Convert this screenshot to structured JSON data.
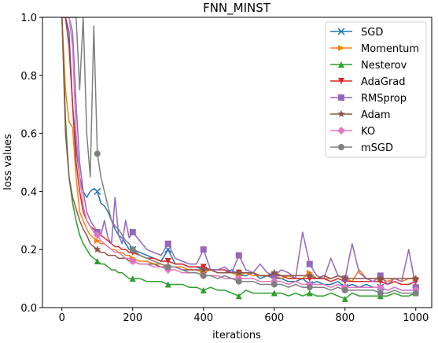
{
  "chart_data": {
    "type": "line",
    "title": "FNN_MINST",
    "xlabel": "iterations",
    "ylabel": "loss values",
    "xlim": [
      -55,
      1045
    ],
    "ylim": [
      0.0,
      1.0
    ],
    "xticks": [
      0,
      200,
      400,
      600,
      800,
      1000
    ],
    "xtick_labels": [
      "0",
      "200",
      "400",
      "600",
      "800",
      "1000"
    ],
    "yticks": [
      0.0,
      0.2,
      0.4,
      0.6,
      0.8,
      1.0
    ],
    "ytick_labels": [
      "0.0",
      "0.2",
      "0.4",
      "0.6",
      "0.8",
      "1.0"
    ],
    "grid": false,
    "legend_position": "top-right",
    "x": [
      0,
      10,
      20,
      30,
      40,
      50,
      60,
      70,
      80,
      90,
      100,
      110,
      120,
      130,
      140,
      150,
      160,
      170,
      180,
      190,
      200,
      220,
      240,
      260,
      280,
      300,
      320,
      340,
      360,
      380,
      400,
      420,
      440,
      460,
      480,
      500,
      520,
      540,
      560,
      580,
      600,
      620,
      640,
      660,
      680,
      700,
      720,
      740,
      760,
      780,
      800,
      820,
      840,
      860,
      880,
      900,
      920,
      940,
      960,
      980,
      1000
    ],
    "series": [
      {
        "name": "SGD",
        "color": "#1f77b4",
        "marker": "x",
        "values": [
          1.0,
          1.0,
          0.95,
          0.7,
          0.55,
          0.45,
          0.4,
          0.38,
          0.4,
          0.41,
          0.4,
          0.36,
          0.35,
          0.33,
          0.3,
          0.27,
          0.25,
          0.24,
          0.22,
          0.2,
          0.2,
          0.19,
          0.18,
          0.17,
          0.16,
          0.2,
          0.15,
          0.15,
          0.14,
          0.14,
          0.13,
          0.13,
          0.12,
          0.12,
          0.13,
          0.11,
          0.11,
          0.12,
          0.1,
          0.11,
          0.1,
          0.1,
          0.09,
          0.09,
          0.1,
          0.08,
          0.09,
          0.08,
          0.08,
          0.09,
          0.07,
          0.08,
          0.07,
          0.08,
          0.07,
          0.07,
          0.06,
          0.07,
          0.06,
          0.06,
          0.06
        ]
      },
      {
        "name": "Momentum",
        "color": "#ff7f0e",
        "marker": "triangle-right",
        "values": [
          1.0,
          0.75,
          0.64,
          0.62,
          0.45,
          0.33,
          0.3,
          0.27,
          0.25,
          0.24,
          0.23,
          0.22,
          0.22,
          0.21,
          0.2,
          0.2,
          0.19,
          0.19,
          0.18,
          0.18,
          0.17,
          0.16,
          0.16,
          0.15,
          0.15,
          0.14,
          0.14,
          0.14,
          0.13,
          0.13,
          0.12,
          0.13,
          0.12,
          0.12,
          0.12,
          0.11,
          0.12,
          0.11,
          0.11,
          0.11,
          0.11,
          0.1,
          0.11,
          0.1,
          0.1,
          0.12,
          0.1,
          0.1,
          0.1,
          0.11,
          0.1,
          0.09,
          0.13,
          0.1,
          0.1,
          0.1,
          0.09,
          0.1,
          0.09,
          0.1,
          0.1
        ]
      },
      {
        "name": "Nesterov",
        "color": "#2ca02c",
        "marker": "triangle-up",
        "values": [
          1.0,
          0.65,
          0.45,
          0.36,
          0.3,
          0.25,
          0.22,
          0.2,
          0.18,
          0.17,
          0.16,
          0.15,
          0.15,
          0.14,
          0.13,
          0.13,
          0.12,
          0.12,
          0.11,
          0.1,
          0.1,
          0.1,
          0.09,
          0.09,
          0.09,
          0.08,
          0.08,
          0.08,
          0.07,
          0.07,
          0.06,
          0.07,
          0.06,
          0.06,
          0.05,
          0.04,
          0.06,
          0.05,
          0.05,
          0.05,
          0.05,
          0.05,
          0.04,
          0.05,
          0.04,
          0.05,
          0.04,
          0.04,
          0.05,
          0.04,
          0.03,
          0.05,
          0.04,
          0.04,
          0.04,
          0.04,
          0.04,
          0.05,
          0.04,
          0.04,
          0.05
        ]
      },
      {
        "name": "AdaGrad",
        "color": "#d62728",
        "marker": "triangle-down",
        "values": [
          1.0,
          1.0,
          0.9,
          0.7,
          0.5,
          0.4,
          0.33,
          0.3,
          0.28,
          0.27,
          0.26,
          0.25,
          0.24,
          0.23,
          0.22,
          0.21,
          0.21,
          0.2,
          0.2,
          0.19,
          0.19,
          0.18,
          0.17,
          0.17,
          0.16,
          0.16,
          0.15,
          0.15,
          0.14,
          0.14,
          0.14,
          0.13,
          0.13,
          0.13,
          0.12,
          0.12,
          0.12,
          0.12,
          0.11,
          0.11,
          0.11,
          0.11,
          0.1,
          0.1,
          0.1,
          0.1,
          0.1,
          0.1,
          0.09,
          0.1,
          0.09,
          0.09,
          0.09,
          0.09,
          0.09,
          0.09,
          0.08,
          0.09,
          0.08,
          0.08,
          0.09
        ]
      },
      {
        "name": "RMSprop",
        "color": "#9467bd",
        "marker": "square",
        "values": [
          1.0,
          1.0,
          1.0,
          0.95,
          0.7,
          0.5,
          0.4,
          0.33,
          0.3,
          0.28,
          0.26,
          0.25,
          0.3,
          0.24,
          0.22,
          0.38,
          0.25,
          0.22,
          0.3,
          0.24,
          0.26,
          0.23,
          0.2,
          0.19,
          0.18,
          0.22,
          0.17,
          0.16,
          0.15,
          0.15,
          0.2,
          0.13,
          0.13,
          0.14,
          0.12,
          0.18,
          0.13,
          0.12,
          0.15,
          0.12,
          0.11,
          0.13,
          0.12,
          0.1,
          0.26,
          0.15,
          0.11,
          0.1,
          0.17,
          0.11,
          0.1,
          0.22,
          0.12,
          0.1,
          0.09,
          0.11,
          0.08,
          0.1,
          0.09,
          0.2,
          0.07
        ]
      },
      {
        "name": "Adam",
        "color": "#8c564b",
        "marker": "star",
        "values": [
          1.0,
          0.6,
          0.45,
          0.38,
          0.34,
          0.3,
          0.27,
          0.25,
          0.22,
          0.21,
          0.2,
          0.19,
          0.19,
          0.18,
          0.18,
          0.18,
          0.17,
          0.17,
          0.17,
          0.16,
          0.16,
          0.15,
          0.15,
          0.15,
          0.14,
          0.14,
          0.14,
          0.13,
          0.13,
          0.13,
          0.13,
          0.13,
          0.12,
          0.12,
          0.12,
          0.12,
          0.12,
          0.12,
          0.11,
          0.11,
          0.12,
          0.11,
          0.11,
          0.11,
          0.11,
          0.11,
          0.1,
          0.11,
          0.1,
          0.11,
          0.1,
          0.1,
          0.1,
          0.1,
          0.1,
          0.1,
          0.1,
          0.1,
          0.1,
          0.1,
          0.1
        ]
      },
      {
        "name": "KO",
        "color": "#e377c2",
        "marker": "diamond",
        "values": [
          1.0,
          1.0,
          1.0,
          0.9,
          0.6,
          0.45,
          0.35,
          0.3,
          0.28,
          0.26,
          0.25,
          0.23,
          0.22,
          0.21,
          0.2,
          0.19,
          0.19,
          0.18,
          0.17,
          0.17,
          0.16,
          0.15,
          0.15,
          0.14,
          0.14,
          0.13,
          0.13,
          0.12,
          0.12,
          0.12,
          0.11,
          0.11,
          0.11,
          0.1,
          0.1,
          0.1,
          0.1,
          0.1,
          0.09,
          0.09,
          0.09,
          0.09,
          0.08,
          0.09,
          0.08,
          0.08,
          0.08,
          0.08,
          0.07,
          0.08,
          0.07,
          0.07,
          0.07,
          0.07,
          0.07,
          0.07,
          0.06,
          0.07,
          0.06,
          0.06,
          0.06
        ]
      },
      {
        "name": "mSGD",
        "color": "#7f7f7f",
        "marker": "circle",
        "values": [
          1.0,
          1.0,
          1.0,
          1.0,
          1.0,
          0.75,
          1.0,
          0.6,
          0.45,
          0.97,
          0.53,
          0.45,
          0.4,
          0.35,
          0.3,
          0.28,
          0.27,
          0.25,
          0.23,
          0.22,
          0.2,
          0.18,
          0.17,
          0.16,
          0.15,
          0.14,
          0.14,
          0.13,
          0.12,
          0.12,
          0.11,
          0.11,
          0.1,
          0.11,
          0.1,
          0.09,
          0.09,
          0.09,
          0.08,
          0.08,
          0.08,
          0.08,
          0.07,
          0.08,
          0.07,
          0.07,
          0.07,
          0.07,
          0.06,
          0.07,
          0.06,
          0.06,
          0.06,
          0.06,
          0.06,
          0.05,
          0.05,
          0.06,
          0.05,
          0.05,
          0.05
        ]
      }
    ]
  }
}
